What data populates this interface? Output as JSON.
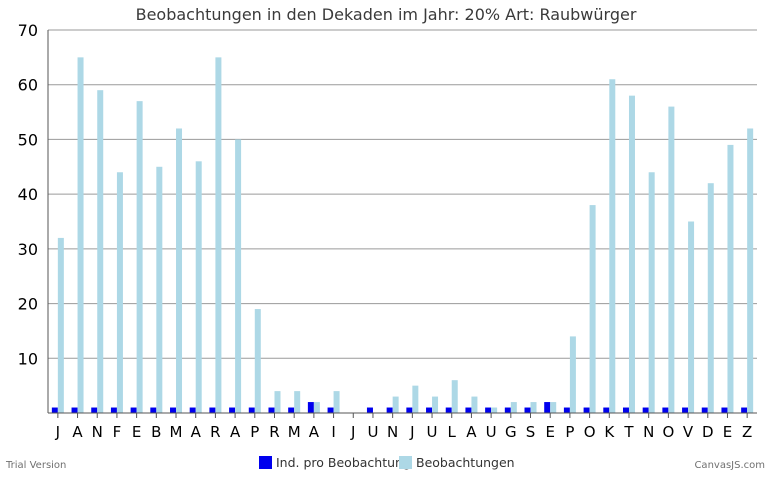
{
  "chart_data": {
    "type": "bar",
    "title": "Beobachtungen in den Dekaden im Jahr: 20%  Art: Raubwürger",
    "categories": [
      "J",
      "A",
      "N",
      "F",
      "E",
      "B",
      "M",
      "A",
      "R",
      "A",
      "P",
      "R",
      "M",
      "A",
      "I",
      "J",
      "U",
      "N",
      "J",
      "U",
      "L",
      "A",
      "U",
      "G",
      "S",
      "E",
      "P",
      "O",
      "K",
      "T",
      "N",
      "O",
      "V",
      "D",
      "E",
      "Z"
    ],
    "ylim": [
      0,
      70
    ],
    "yticks": [
      10,
      20,
      30,
      40,
      50,
      60,
      70
    ],
    "grid": true,
    "legend_position": "bottom",
    "series": [
      {
        "name": "Ind. pro Beobachtung",
        "color": "#0000ee",
        "values": [
          1,
          1,
          1,
          1,
          1,
          1,
          1,
          1,
          1,
          1,
          1,
          1,
          1,
          2,
          1,
          0,
          1,
          1,
          1,
          1,
          1,
          1,
          1,
          1,
          1,
          2,
          1,
          1,
          1,
          1,
          1,
          1,
          1,
          1,
          1,
          1
        ]
      },
      {
        "name": "Beobachtungen",
        "color": "#add8e6",
        "values": [
          32,
          65,
          59,
          44,
          57,
          45,
          52,
          46,
          65,
          50,
          19,
          4,
          4,
          2,
          4,
          0,
          0,
          3,
          5,
          3,
          6,
          3,
          1,
          2,
          2,
          2,
          14,
          38,
          61,
          58,
          44,
          56,
          35,
          42,
          49,
          52
        ]
      }
    ]
  },
  "footer": {
    "trial_text": "Trial Version",
    "credit_text": "CanvasJS.com"
  }
}
